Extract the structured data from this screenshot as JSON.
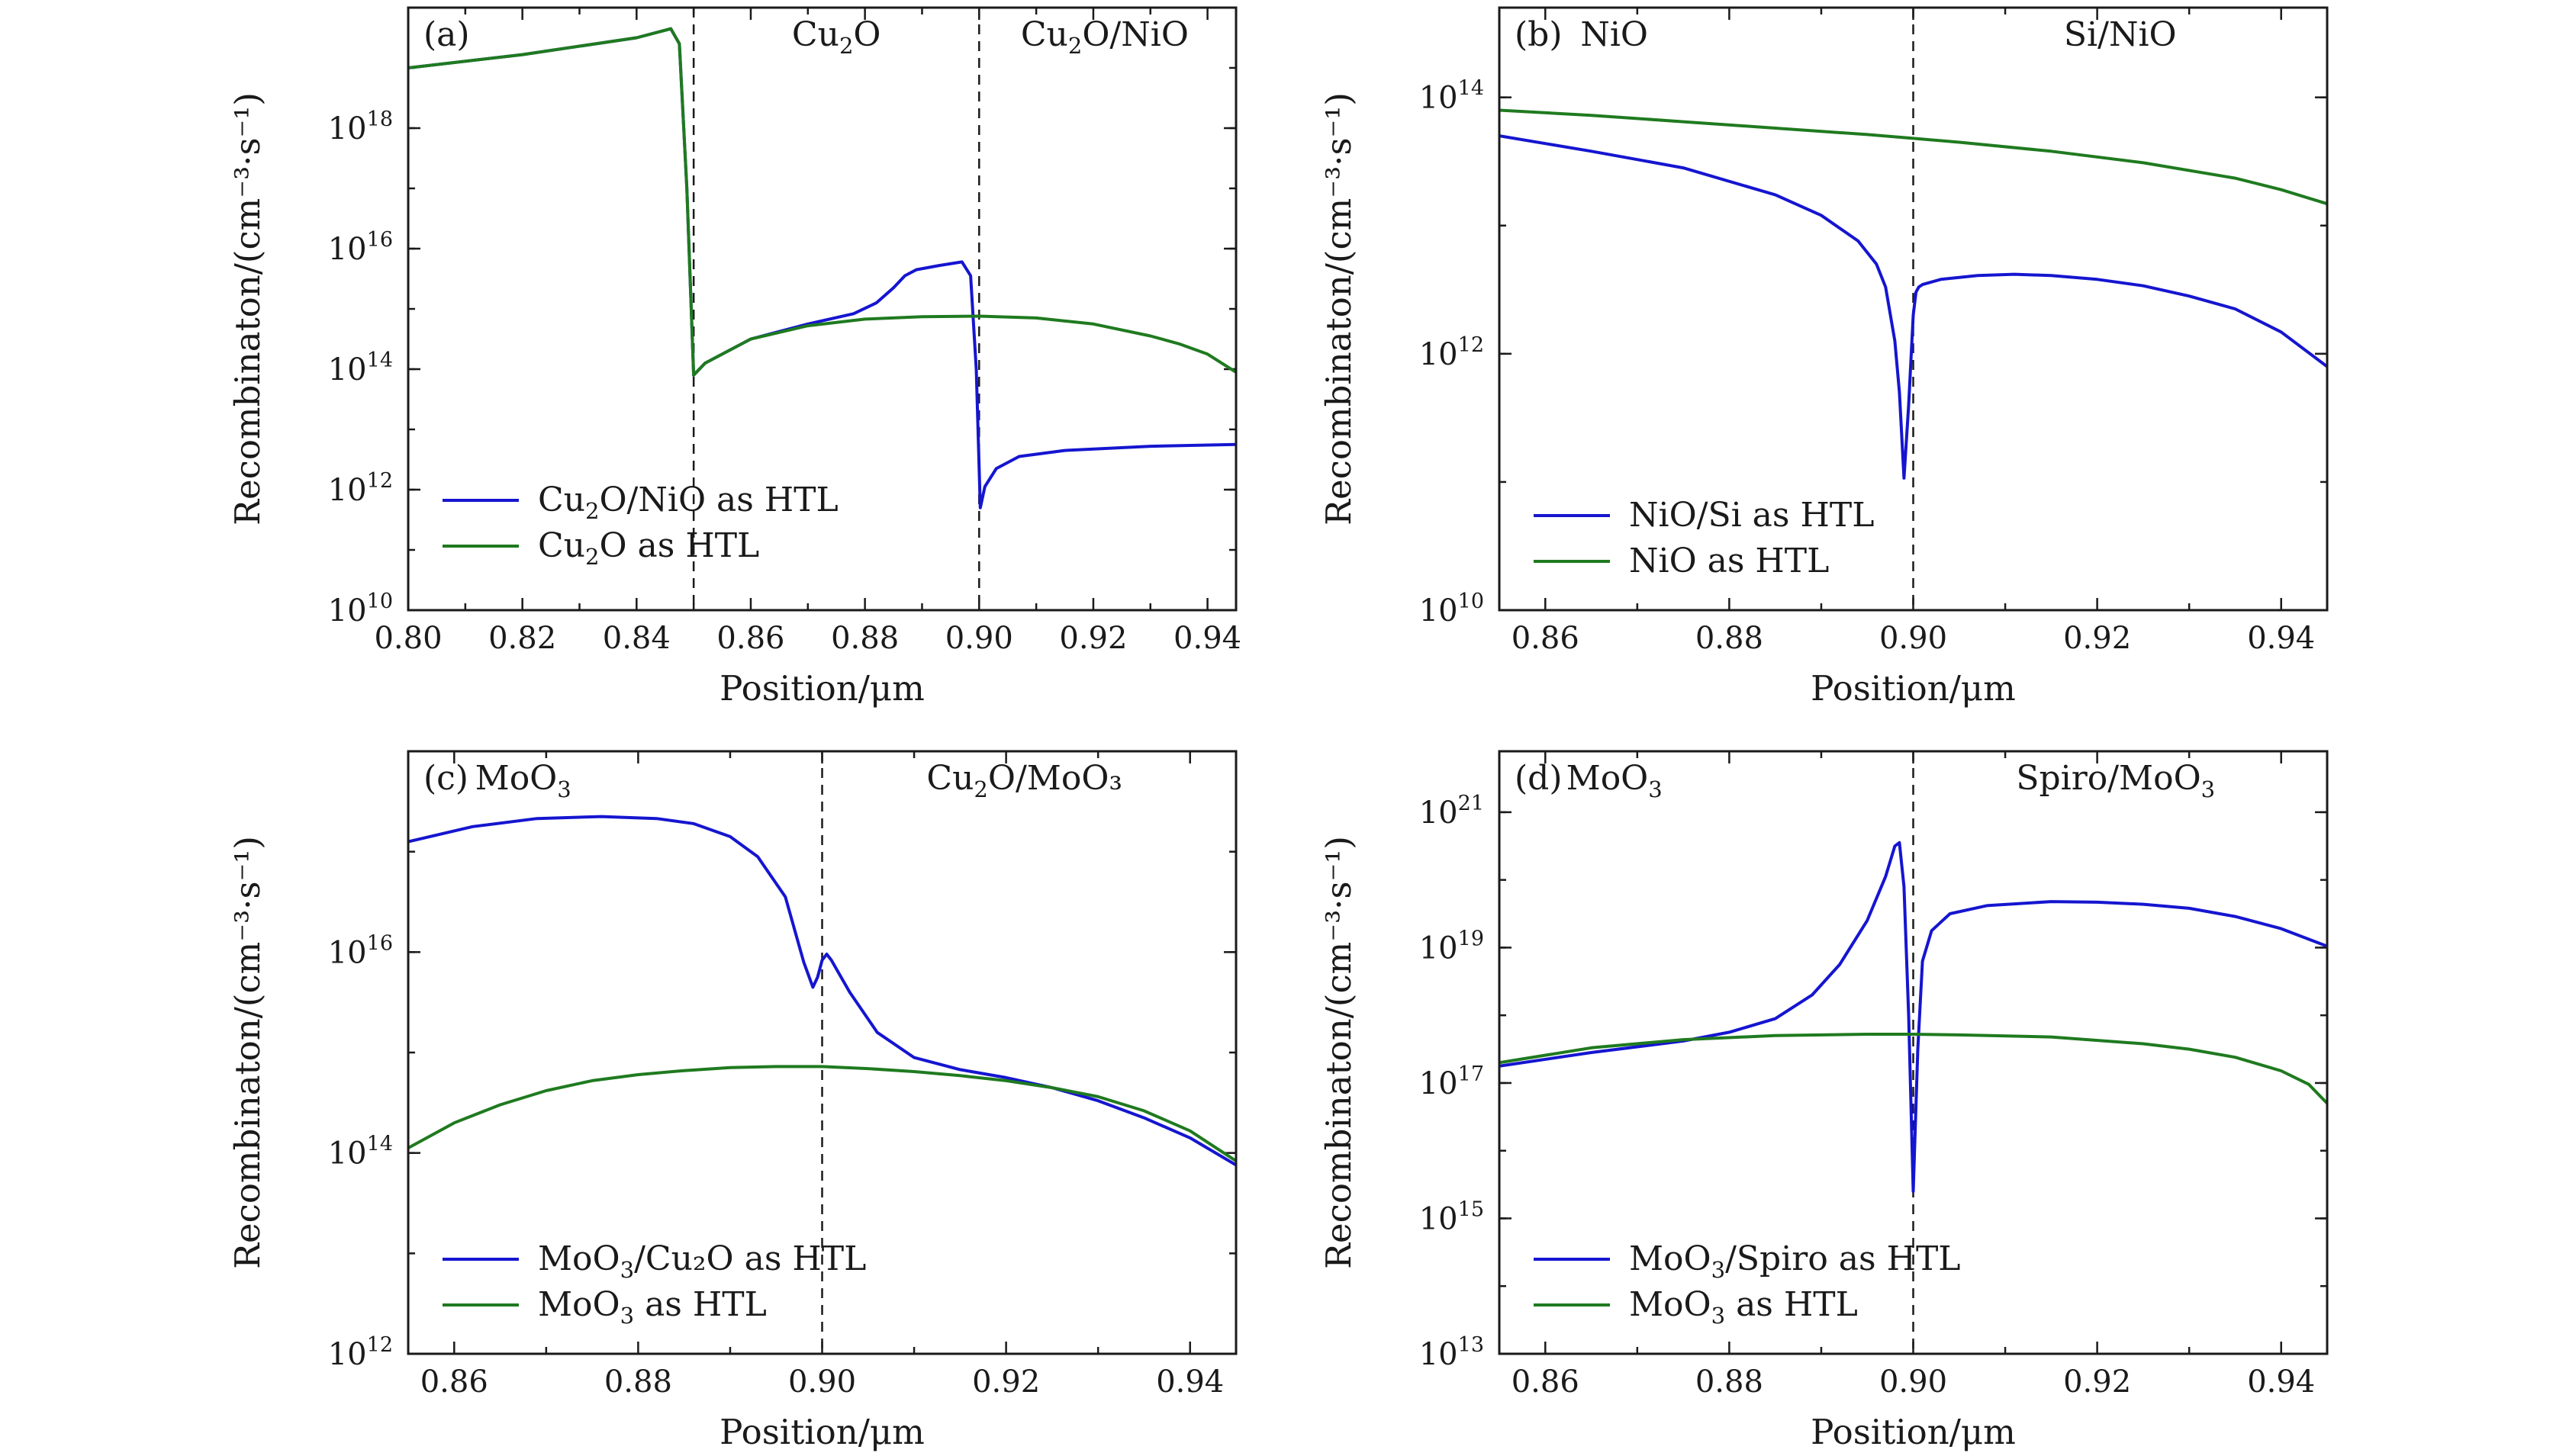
{
  "chart_data": [
    {
      "type": "line",
      "panel": "(a)",
      "xlabel": "Position/μm",
      "ylabel": "Recombinaton/(cm⁻³·s⁻¹)",
      "xlim": [
        0.8,
        0.945
      ],
      "ylim_log10": [
        10,
        20
      ],
      "x_ticks": [
        "0.80",
        "0.82",
        "0.84",
        "0.86",
        "0.88",
        "0.90",
        "0.92",
        "0.94"
      ],
      "y_ticks": [
        {
          "base": "10",
          "exp": "10"
        },
        {
          "base": "10",
          "exp": "12"
        },
        {
          "base": "10",
          "exp": "14"
        },
        {
          "base": "10",
          "exp": "16"
        },
        {
          "base": "10",
          "exp": "18"
        }
      ],
      "dividers": [
        0.85,
        0.9
      ],
      "regions": [
        {
          "text": "Cu",
          "sub": "2",
          "rest": "O",
          "x": 0.875
        },
        {
          "text": "Cu",
          "sub": "2",
          "rest": "O/NiO",
          "x": 0.922
        }
      ],
      "legend": [
        {
          "text": "Cu",
          "sub": "2",
          "rest": "O/NiO as HTL",
          "color": "#1515d0"
        },
        {
          "text": "Cu",
          "sub": "2",
          "rest": "O as HTL",
          "color": "#1f7a1f"
        }
      ],
      "series": [
        {
          "name": "Cu2O/NiO as HTL",
          "color": "#1515d0",
          "x": [
            0.8,
            0.82,
            0.84,
            0.846,
            0.8475,
            0.8488,
            0.85,
            0.852,
            0.86,
            0.87,
            0.878,
            0.882,
            0.885,
            0.887,
            0.889,
            0.893,
            0.897,
            0.8985,
            0.8995,
            0.9002,
            0.901,
            0.903,
            0.907,
            0.915,
            0.93,
            0.945
          ],
          "log10_y": [
            19.0,
            19.22,
            19.5,
            19.65,
            19.4,
            17.0,
            13.9,
            14.1,
            14.5,
            14.75,
            14.92,
            15.1,
            15.35,
            15.55,
            15.65,
            15.72,
            15.78,
            15.55,
            14.0,
            11.7,
            12.05,
            12.35,
            12.55,
            12.65,
            12.72,
            12.75
          ]
        },
        {
          "name": "Cu2O as HTL",
          "color": "#1f7a1f",
          "x": [
            0.8,
            0.82,
            0.84,
            0.846,
            0.8475,
            0.8488,
            0.85,
            0.852,
            0.86,
            0.87,
            0.88,
            0.89,
            0.9,
            0.91,
            0.92,
            0.93,
            0.935,
            0.94,
            0.945
          ],
          "log10_y": [
            19.0,
            19.22,
            19.5,
            19.65,
            19.4,
            17.0,
            13.9,
            14.1,
            14.5,
            14.72,
            14.83,
            14.87,
            14.88,
            14.85,
            14.75,
            14.55,
            14.42,
            14.25,
            13.95
          ]
        }
      ]
    },
    {
      "type": "line",
      "panel": "(b)",
      "xlabel": "Position/μm",
      "ylabel": "Recombinaton/(cm⁻³·s⁻¹)",
      "xlim": [
        0.855,
        0.945
      ],
      "ylim_log10": [
        10,
        14.7
      ],
      "x_ticks": [
        "0.86",
        "0.88",
        "0.90",
        "0.92",
        "0.94"
      ],
      "y_ticks": [
        {
          "base": "10",
          "exp": "10"
        },
        {
          "base": "10",
          "exp": "12"
        },
        {
          "base": "10",
          "exp": "14"
        }
      ],
      "dividers": [
        0.9
      ],
      "regions": [
        {
          "text": "NiO",
          "sub": "",
          "rest": "",
          "x": 0.8675
        },
        {
          "text": "Si/NiO",
          "sub": "",
          "rest": "",
          "x": 0.9225
        }
      ],
      "legend": [
        {
          "text": "NiO/Si as HTL",
          "sub": "",
          "rest": "",
          "color": "#1515d0"
        },
        {
          "text": "NiO as HTL",
          "sub": "",
          "rest": "",
          "color": "#1f7a1f"
        }
      ],
      "series": [
        {
          "name": "NiO/Si as HTL",
          "color": "#1515d0",
          "x": [
            0.855,
            0.865,
            0.875,
            0.885,
            0.89,
            0.894,
            0.896,
            0.897,
            0.898,
            0.8985,
            0.899,
            0.8995,
            0.9,
            0.9003,
            0.9006,
            0.901,
            0.903,
            0.907,
            0.911,
            0.915,
            0.92,
            0.925,
            0.93,
            0.935,
            0.94,
            0.945
          ],
          "log10_y": [
            13.7,
            13.58,
            13.45,
            13.24,
            13.08,
            12.88,
            12.7,
            12.52,
            12.1,
            11.7,
            11.03,
            11.6,
            12.3,
            12.48,
            12.52,
            12.54,
            12.58,
            12.61,
            12.62,
            12.61,
            12.58,
            12.53,
            12.45,
            12.35,
            12.17,
            11.9
          ]
        },
        {
          "name": "NiO as HTL",
          "color": "#1f7a1f",
          "x": [
            0.855,
            0.865,
            0.875,
            0.885,
            0.895,
            0.9,
            0.905,
            0.915,
            0.925,
            0.935,
            0.94,
            0.945
          ],
          "log10_y": [
            13.9,
            13.86,
            13.81,
            13.76,
            13.71,
            13.68,
            13.65,
            13.58,
            13.49,
            13.37,
            13.28,
            13.17
          ]
        }
      ]
    },
    {
      "type": "line",
      "panel": "(c)",
      "xlabel": "Position/μm",
      "ylabel": "Recombinaton/(cm⁻³·s⁻¹)",
      "xlim": [
        0.855,
        0.945
      ],
      "ylim_log10": [
        12,
        18
      ],
      "x_ticks": [
        "0.86",
        "0.88",
        "0.90",
        "0.92",
        "0.94"
      ],
      "y_ticks": [
        {
          "base": "10",
          "exp": "12"
        },
        {
          "base": "10",
          "exp": "14"
        },
        {
          "base": "10",
          "exp": "16"
        }
      ],
      "dividers": [
        0.9
      ],
      "regions": [
        {
          "text": "MoO",
          "sub": "3",
          "rest": "",
          "x": 0.8675
        },
        {
          "text": "Cu",
          "sub": "2",
          "rest": "O/MoO₃",
          "x": 0.922
        }
      ],
      "legend": [
        {
          "text": "MoO",
          "sub": "3",
          "rest": "/Cu₂O as HTL",
          "color": "#1515d0"
        },
        {
          "text": "MoO",
          "sub": "3",
          "rest": " as HTL",
          "color": "#1f7a1f"
        }
      ],
      "series": [
        {
          "name": "MoO3/Cu2O as HTL",
          "color": "#1515d0",
          "x": [
            0.855,
            0.862,
            0.869,
            0.876,
            0.882,
            0.886,
            0.89,
            0.893,
            0.896,
            0.898,
            0.899,
            0.8995,
            0.9,
            0.9005,
            0.901,
            0.903,
            0.906,
            0.91,
            0.915,
            0.92,
            0.925,
            0.93,
            0.935,
            0.94,
            0.945
          ],
          "log10_y": [
            17.1,
            17.25,
            17.33,
            17.35,
            17.33,
            17.28,
            17.15,
            16.95,
            16.55,
            15.9,
            15.65,
            15.75,
            15.92,
            15.98,
            15.92,
            15.6,
            15.2,
            14.95,
            14.83,
            14.75,
            14.65,
            14.52,
            14.35,
            14.15,
            13.88
          ]
        },
        {
          "name": "MoO3 as HTL",
          "color": "#1f7a1f",
          "x": [
            0.855,
            0.86,
            0.865,
            0.87,
            0.875,
            0.88,
            0.885,
            0.89,
            0.895,
            0.9,
            0.905,
            0.91,
            0.915,
            0.92,
            0.925,
            0.93,
            0.935,
            0.94,
            0.945
          ],
          "log10_y": [
            14.05,
            14.3,
            14.48,
            14.62,
            14.72,
            14.78,
            14.82,
            14.85,
            14.86,
            14.86,
            14.84,
            14.81,
            14.77,
            14.72,
            14.65,
            14.56,
            14.42,
            14.22,
            13.92
          ]
        }
      ]
    },
    {
      "type": "line",
      "panel": "(d)",
      "xlabel": "Position/μm",
      "ylabel": "Recombinaton/(cm⁻³·s⁻¹)",
      "xlim": [
        0.855,
        0.945
      ],
      "ylim_log10": [
        13,
        21.9
      ],
      "x_ticks": [
        "0.86",
        "0.88",
        "0.90",
        "0.92",
        "0.94"
      ],
      "y_ticks": [
        {
          "base": "10",
          "exp": "13"
        },
        {
          "base": "10",
          "exp": "15"
        },
        {
          "base": "10",
          "exp": "17"
        },
        {
          "base": "10",
          "exp": "19"
        },
        {
          "base": "10",
          "exp": "21"
        }
      ],
      "dividers": [
        0.9
      ],
      "regions": [
        {
          "text": "MoO",
          "sub": "3",
          "rest": "",
          "x": 0.8675
        },
        {
          "text": "Spiro/MoO",
          "sub": "3",
          "rest": "",
          "x": 0.922
        }
      ],
      "legend": [
        {
          "text": "MoO",
          "sub": "3",
          "rest": "/Spiro as HTL",
          "color": "#1515d0"
        },
        {
          "text": "MoO",
          "sub": "3",
          "rest": " as HTL",
          "color": "#1f7a1f"
        }
      ],
      "series": [
        {
          "name": "MoO3/Spiro as HTL",
          "color": "#1515d0",
          "x": [
            0.855,
            0.865,
            0.875,
            0.88,
            0.885,
            0.889,
            0.892,
            0.895,
            0.897,
            0.898,
            0.8985,
            0.899,
            0.8995,
            0.9,
            0.9005,
            0.901,
            0.902,
            0.904,
            0.908,
            0.915,
            0.92,
            0.925,
            0.93,
            0.935,
            0.94,
            0.945
          ],
          "log10_y": [
            17.25,
            17.45,
            17.62,
            17.75,
            17.95,
            18.3,
            18.75,
            19.4,
            20.05,
            20.5,
            20.55,
            19.9,
            18.0,
            15.4,
            17.5,
            18.8,
            19.25,
            19.5,
            19.62,
            19.68,
            19.67,
            19.64,
            19.58,
            19.46,
            19.28,
            19.02
          ]
        },
        {
          "name": "MoO3 as HTL",
          "color": "#1f7a1f",
          "x": [
            0.855,
            0.865,
            0.875,
            0.885,
            0.895,
            0.9,
            0.905,
            0.915,
            0.925,
            0.93,
            0.935,
            0.94,
            0.943,
            0.945
          ],
          "log10_y": [
            17.3,
            17.52,
            17.64,
            17.7,
            17.72,
            17.72,
            17.71,
            17.68,
            17.58,
            17.5,
            17.38,
            17.18,
            16.98,
            16.7
          ]
        }
      ]
    }
  ]
}
